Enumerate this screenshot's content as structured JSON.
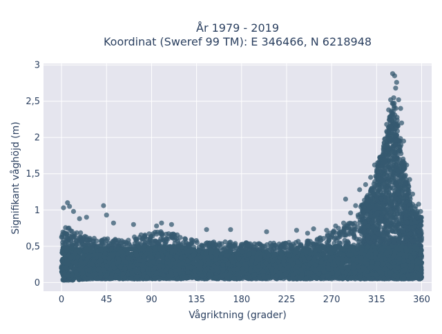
{
  "chart_data": {
    "type": "scatter",
    "title_line1": "År 1979 - 2019",
    "title_line2": "Koordinat (Sweref 99 TM): E 346466, N 6218948",
    "xlabel": "Vågriktning (grader)",
    "ylabel": "Signifikant våghöjd (m)",
    "xlim": [
      -18,
      370
    ],
    "ylim": [
      -0.12,
      3.02
    ],
    "x_ticks": [
      0,
      45,
      90,
      135,
      180,
      225,
      270,
      315,
      360
    ],
    "x_tick_labels": [
      "0",
      "45",
      "90",
      "135",
      "180",
      "225",
      "270",
      "315",
      "360"
    ],
    "y_ticks": [
      0,
      0.5,
      1,
      1.5,
      2,
      2.5,
      3
    ],
    "y_tick_labels": [
      "0",
      "0,5",
      "1",
      "1,5",
      "2",
      "2,5",
      "3"
    ],
    "grid": true,
    "legend": "none",
    "marker_color": "#355a70",
    "plot_background": "#e5e5ee",
    "series": [
      {
        "description_envelope": [
          {
            "x": 0,
            "y_min": 0.03,
            "y_max": 0.78
          },
          {
            "x": 10,
            "y_min": 0.03,
            "y_max": 0.75
          },
          {
            "x": 30,
            "y_min": 0.05,
            "y_max": 0.62
          },
          {
            "x": 60,
            "y_min": 0.05,
            "y_max": 0.6
          },
          {
            "x": 100,
            "y_min": 0.05,
            "y_max": 0.72
          },
          {
            "x": 135,
            "y_min": 0.05,
            "y_max": 0.58
          },
          {
            "x": 180,
            "y_min": 0.05,
            "y_max": 0.55
          },
          {
            "x": 225,
            "y_min": 0.05,
            "y_max": 0.55
          },
          {
            "x": 260,
            "y_min": 0.05,
            "y_max": 0.62
          },
          {
            "x": 290,
            "y_min": 0.05,
            "y_max": 0.85
          },
          {
            "x": 310,
            "y_min": 0.05,
            "y_max": 1.3
          },
          {
            "x": 325,
            "y_min": 0.05,
            "y_max": 2.1
          },
          {
            "x": 332,
            "y_min": 0.05,
            "y_max": 2.6
          },
          {
            "x": 340,
            "y_min": 0.05,
            "y_max": 1.9
          },
          {
            "x": 350,
            "y_min": 0.05,
            "y_max": 1.1
          },
          {
            "x": 360,
            "y_min": 0.05,
            "y_max": 0.9
          }
        ],
        "outliers": [
          {
            "x": 2,
            "y": 1.03
          },
          {
            "x": 6,
            "y": 1.1
          },
          {
            "x": 8,
            "y": 1.05
          },
          {
            "x": 12,
            "y": 0.98
          },
          {
            "x": 42,
            "y": 1.06
          },
          {
            "x": 45,
            "y": 0.93
          },
          {
            "x": 25,
            "y": 0.9
          },
          {
            "x": 18,
            "y": 0.88
          },
          {
            "x": 52,
            "y": 0.82
          },
          {
            "x": 72,
            "y": 0.8
          },
          {
            "x": 100,
            "y": 0.82
          },
          {
            "x": 95,
            "y": 0.78
          },
          {
            "x": 110,
            "y": 0.8
          },
          {
            "x": 145,
            "y": 0.73
          },
          {
            "x": 169,
            "y": 0.73
          },
          {
            "x": 205,
            "y": 0.7
          },
          {
            "x": 235,
            "y": 0.72
          },
          {
            "x": 246,
            "y": 0.68
          },
          {
            "x": 252,
            "y": 0.74
          },
          {
            "x": 265,
            "y": 0.72
          },
          {
            "x": 274,
            "y": 0.78
          },
          {
            "x": 282,
            "y": 0.82
          },
          {
            "x": 289,
            "y": 0.96
          },
          {
            "x": 284,
            "y": 1.15
          },
          {
            "x": 294,
            "y": 1.06
          },
          {
            "x": 298,
            "y": 1.28
          },
          {
            "x": 304,
            "y": 1.35
          },
          {
            "x": 309,
            "y": 1.45
          },
          {
            "x": 313,
            "y": 1.62
          },
          {
            "x": 316,
            "y": 1.65
          },
          {
            "x": 319,
            "y": 1.52
          },
          {
            "x": 322,
            "y": 1.88
          },
          {
            "x": 325,
            "y": 2.18
          },
          {
            "x": 327,
            "y": 2.38
          },
          {
            "x": 329,
            "y": 2.52
          },
          {
            "x": 331,
            "y": 2.88
          },
          {
            "x": 333,
            "y": 2.85
          },
          {
            "x": 335,
            "y": 2.76
          },
          {
            "x": 334,
            "y": 2.68
          },
          {
            "x": 337,
            "y": 2.52
          },
          {
            "x": 339,
            "y": 2.4
          },
          {
            "x": 340,
            "y": 2.2
          },
          {
            "x": 342,
            "y": 1.95
          },
          {
            "x": 345,
            "y": 1.62
          },
          {
            "x": 348,
            "y": 1.42
          },
          {
            "x": 351,
            "y": 1.22
          },
          {
            "x": 354,
            "y": 1.05
          },
          {
            "x": 357,
            "y": 1.08
          },
          {
            "x": 359,
            "y": 0.98
          }
        ]
      }
    ]
  }
}
